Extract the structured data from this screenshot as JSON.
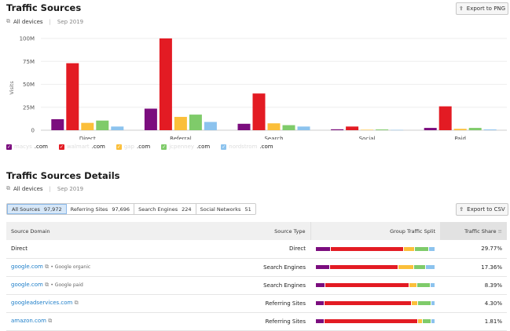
{
  "section1": {
    "title": "Traffic Sources",
    "devices": "All devices",
    "date": "Sep 2019",
    "export_label": "Export to PNG"
  },
  "chart_data": {
    "type": "bar",
    "ylabel": "Visits",
    "ylim": [
      0,
      100000000
    ],
    "yticks": [
      "0",
      "25M",
      "50M",
      "75M",
      "100M"
    ],
    "categories": [
      "Direct",
      "Referral",
      "Search",
      "Social",
      "Paid"
    ],
    "grid": true,
    "legend_position": "bottom-left",
    "series": [
      {
        "name": "macys.com",
        "color": "#7b0d7e",
        "values": [
          12000000,
          23500000,
          7000000,
          1000000,
          2500000
        ]
      },
      {
        "name": "walmart.com",
        "color": "#e31b23",
        "values": [
          73000000,
          100000000,
          40000000,
          4000000,
          26000000
        ]
      },
      {
        "name": "gap.com",
        "color": "#fbbf3a",
        "values": [
          8000000,
          14500000,
          7500000,
          500000,
          1500000
        ]
      },
      {
        "name": "jcpenney.com",
        "color": "#7fcb6a",
        "values": [
          10500000,
          17000000,
          5500000,
          800000,
          2500000
        ]
      },
      {
        "name": "nordstrom.com",
        "color": "#8cc3ee",
        "values": [
          4000000,
          9000000,
          4000000,
          300000,
          800000
        ]
      }
    ]
  },
  "legend": [
    {
      "prefix": "macys",
      "suffix": ".com",
      "color": "#7b0d7e"
    },
    {
      "prefix": "walmart",
      "suffix": ".com",
      "color": "#e31b23"
    },
    {
      "prefix": "gap",
      "suffix": ".com",
      "color": "#fbbf3a"
    },
    {
      "prefix": "jcpenney",
      "suffix": ".com",
      "color": "#7fcb6a"
    },
    {
      "prefix": "nordstrom",
      "suffix": ".com",
      "color": "#8cc3ee"
    }
  ],
  "section2": {
    "title": "Traffic Sources Details",
    "devices": "All devices",
    "date": "Sep 2019",
    "export_label": "Export to CSV"
  },
  "tabs": [
    {
      "label": "All Sources",
      "count": "97,972",
      "active": true
    },
    {
      "label": "Referring Sites",
      "count": "97,696"
    },
    {
      "label": "Search Engines",
      "count": "224"
    },
    {
      "label": "Social Networks",
      "count": "51"
    }
  ],
  "table": {
    "headers": [
      "Source Domain",
      "Source Type",
      "Group Traffic Split",
      "Traffic Share"
    ],
    "rows": [
      {
        "domain": "Direct",
        "link": false,
        "note": "",
        "type": "Direct",
        "split": [
          12.7,
          61,
          9.5,
          11.4,
          5.4
        ],
        "share": "29.77%"
      },
      {
        "domain": "google.com",
        "link": true,
        "note": "• Google organic",
        "type": "Search Engines",
        "split": [
          12,
          57,
          13.5,
          9.5,
          8
        ],
        "share": "17.36%"
      },
      {
        "domain": "google.com",
        "link": true,
        "note": "• Google paid",
        "type": "Search Engines",
        "split": [
          8,
          70,
          7,
          11,
          4
        ],
        "share": "8.39%"
      },
      {
        "domain": "googleadservices.com",
        "link": true,
        "note": "",
        "type": "Referring Sites",
        "split": [
          7,
          73.5,
          5,
          11,
          3.5
        ],
        "share": "4.30%"
      },
      {
        "domain": "amazon.com",
        "link": true,
        "note": "",
        "type": "Referring Sites",
        "split": [
          7,
          78.5,
          4,
          7,
          3.5
        ],
        "share": "1.81%"
      }
    ]
  }
}
